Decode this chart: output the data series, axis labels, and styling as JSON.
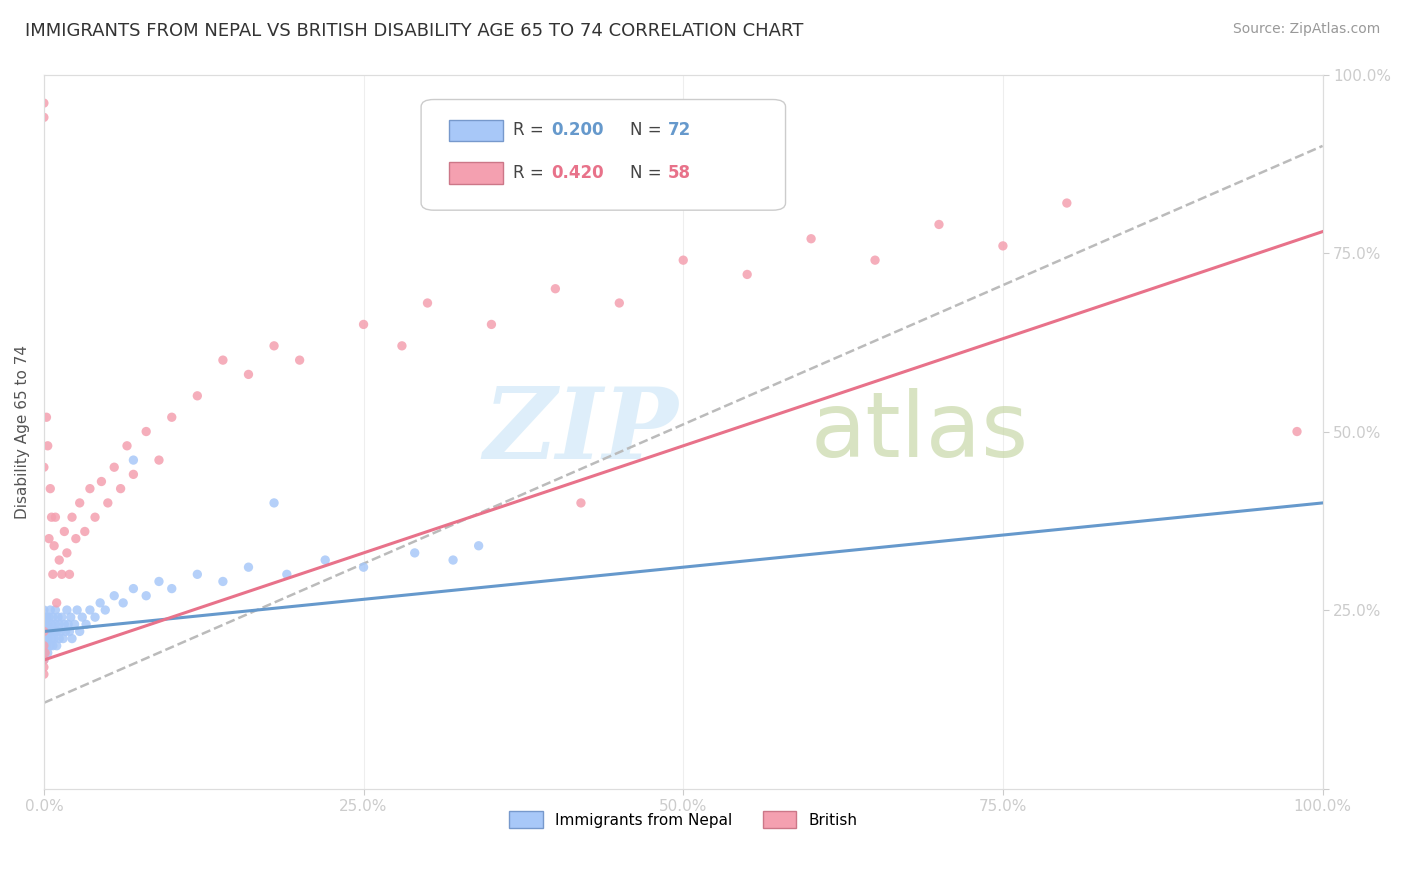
{
  "title": "IMMIGRANTS FROM NEPAL VS BRITISH DISABILITY AGE 65 TO 74 CORRELATION CHART",
  "source": "Source: ZipAtlas.com",
  "ylabel": "Disability Age 65 to 74",
  "yaxis_ticks": [
    0.0,
    0.25,
    0.5,
    0.75,
    1.0
  ],
  "yaxis_labels": [
    "",
    "25.0%",
    "50.0%",
    "75.0%",
    "100.0%"
  ],
  "nepal_color": "#a8c8f8",
  "nepal_line_color": "#6699cc",
  "british_color": "#f4a0b0",
  "british_line_color": "#e8728a",
  "dashed_line_color": "#bbbbbb",
  "background_color": "#ffffff",
  "grid_color": "#eeeeee",
  "watermark_zip_color": "#d0e8f8",
  "watermark_atlas_color": "#c8d8a8",
  "title_fontsize": 13,
  "source_fontsize": 10,
  "nepal_x": [
    0.0,
    0.0,
    0.0,
    0.0,
    0.0,
    0.0,
    0.0,
    0.0,
    0.0,
    0.0,
    0.001,
    0.001,
    0.002,
    0.002,
    0.002,
    0.003,
    0.003,
    0.003,
    0.004,
    0.004,
    0.005,
    0.005,
    0.005,
    0.006,
    0.006,
    0.007,
    0.007,
    0.008,
    0.008,
    0.009,
    0.009,
    0.01,
    0.01,
    0.011,
    0.012,
    0.012,
    0.013,
    0.014,
    0.015,
    0.016,
    0.017,
    0.018,
    0.019,
    0.02,
    0.021,
    0.022,
    0.024,
    0.026,
    0.028,
    0.03,
    0.033,
    0.036,
    0.04,
    0.044,
    0.048,
    0.055,
    0.062,
    0.07,
    0.08,
    0.09,
    0.1,
    0.12,
    0.14,
    0.16,
    0.19,
    0.22,
    0.25,
    0.29,
    0.32,
    0.34,
    0.07,
    0.18
  ],
  "nepal_y": [
    0.22,
    0.21,
    0.2,
    0.23,
    0.19,
    0.24,
    0.18,
    0.22,
    0.25,
    0.2,
    0.21,
    0.23,
    0.22,
    0.2,
    0.24,
    0.21,
    0.23,
    0.19,
    0.22,
    0.24,
    0.2,
    0.22,
    0.25,
    0.21,
    0.23,
    0.2,
    0.24,
    0.22,
    0.21,
    0.23,
    0.25,
    0.22,
    0.2,
    0.24,
    0.21,
    0.23,
    0.22,
    0.24,
    0.21,
    0.23,
    0.22,
    0.25,
    0.23,
    0.22,
    0.24,
    0.21,
    0.23,
    0.25,
    0.22,
    0.24,
    0.23,
    0.25,
    0.24,
    0.26,
    0.25,
    0.27,
    0.26,
    0.28,
    0.27,
    0.29,
    0.28,
    0.3,
    0.29,
    0.31,
    0.3,
    0.32,
    0.31,
    0.33,
    0.32,
    0.34,
    0.46,
    0.4
  ],
  "british_x": [
    0.0,
    0.0,
    0.0,
    0.0,
    0.0,
    0.0,
    0.0,
    0.0,
    0.001,
    0.002,
    0.003,
    0.004,
    0.005,
    0.006,
    0.007,
    0.008,
    0.009,
    0.01,
    0.012,
    0.014,
    0.016,
    0.018,
    0.02,
    0.022,
    0.025,
    0.028,
    0.032,
    0.036,
    0.04,
    0.045,
    0.05,
    0.055,
    0.06,
    0.065,
    0.07,
    0.08,
    0.09,
    0.1,
    0.12,
    0.14,
    0.16,
    0.18,
    0.2,
    0.25,
    0.28,
    0.3,
    0.35,
    0.4,
    0.45,
    0.5,
    0.55,
    0.6,
    0.65,
    0.7,
    0.75,
    0.8,
    0.98,
    0.42
  ],
  "british_y": [
    0.17,
    0.96,
    0.94,
    0.18,
    0.16,
    0.22,
    0.2,
    0.45,
    0.19,
    0.52,
    0.48,
    0.35,
    0.42,
    0.38,
    0.3,
    0.34,
    0.38,
    0.26,
    0.32,
    0.3,
    0.36,
    0.33,
    0.3,
    0.38,
    0.35,
    0.4,
    0.36,
    0.42,
    0.38,
    0.43,
    0.4,
    0.45,
    0.42,
    0.48,
    0.44,
    0.5,
    0.46,
    0.52,
    0.55,
    0.6,
    0.58,
    0.62,
    0.6,
    0.65,
    0.62,
    0.68,
    0.65,
    0.7,
    0.68,
    0.74,
    0.72,
    0.77,
    0.74,
    0.79,
    0.76,
    0.82,
    0.5,
    0.4
  ],
  "nepal_R": 0.2,
  "nepal_N": 72,
  "british_R": 0.42,
  "british_N": 58,
  "nepal_slope": 0.18,
  "nepal_intercept": 0.22,
  "british_slope": 0.6,
  "british_intercept": 0.18,
  "dashed_slope": 0.78,
  "dashed_intercept": 0.12
}
